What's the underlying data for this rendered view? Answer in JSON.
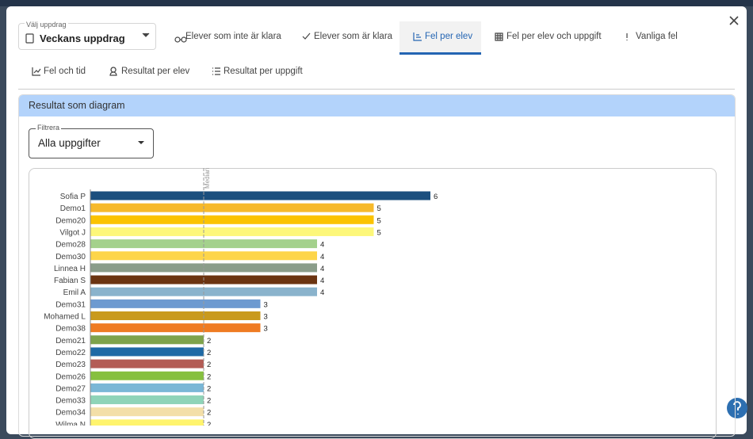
{
  "header": {
    "select_label": "Välj uppdrag",
    "select_value": "Veckans uppdrag"
  },
  "tabs": [
    "Elever som inte är klara",
    "Elever som är klara",
    "Fel per elev",
    "Fel per elev och uppgift",
    "Vanliga fel"
  ],
  "active_tab": 2,
  "subtabs": [
    "Fel och tid",
    "Resultat per elev",
    "Resultat per uppgift"
  ],
  "panel": {
    "title": "Resultat som diagram"
  },
  "filter": {
    "label": "Filtrera",
    "value": "Alla uppgifter"
  },
  "chart": {
    "type": "bar",
    "orientation": "horizontal",
    "categories": [
      "Sofia P",
      "Demo1",
      "Demo20",
      "Vilgot J",
      "Demo28",
      "Demo30",
      "Linnea H",
      "Fabian S",
      "Emil A",
      "Demo31",
      "Mohamed L",
      "Demo38",
      "Demo21",
      "Demo22",
      "Demo23",
      "Demo26",
      "Demo27",
      "Demo33",
      "Demo34",
      "Wilma N"
    ],
    "values": [
      6,
      5,
      5,
      5,
      4,
      4,
      4,
      4,
      4,
      3,
      3,
      3,
      2,
      2,
      2,
      2,
      2,
      2,
      2,
      2
    ],
    "colors": [
      "#1b4f7e",
      "#f6b92b",
      "#fbc300",
      "#fdf77a",
      "#a4d18c",
      "#fdd54a",
      "#8b9d8a",
      "#6b3411",
      "#8ab3cc",
      "#6d9ad0",
      "#c99a1d",
      "#ef7b22",
      "#7ea34b",
      "#1f6aa5",
      "#b35c55",
      "#86c03f",
      "#7ab7d6",
      "#8fd4b8",
      "#f3dfa8",
      "#fff46d"
    ],
    "median": {
      "label": "Median",
      "value": 2
    }
  }
}
